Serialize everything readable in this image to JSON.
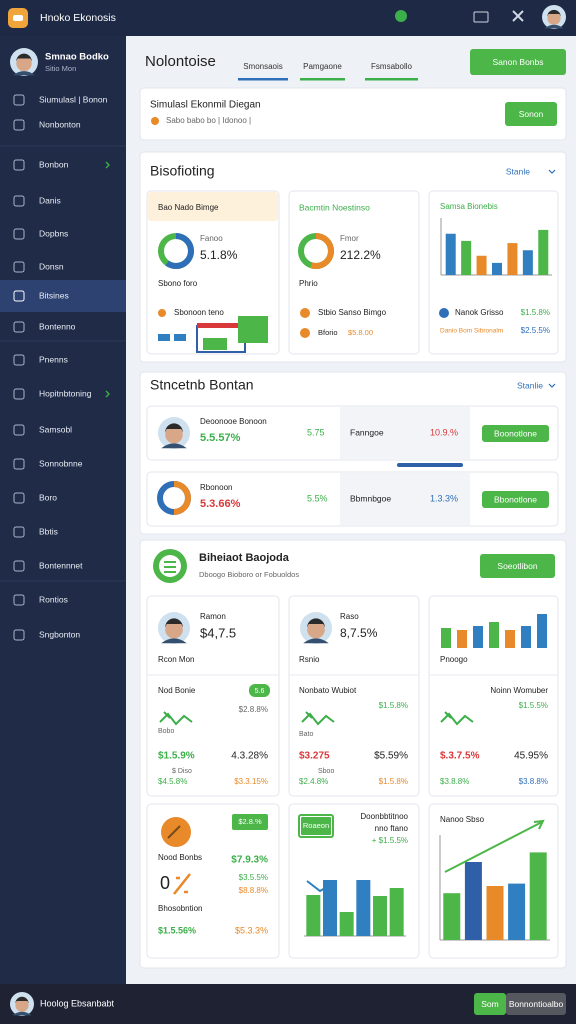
{
  "header": {
    "title": "Hnoko Ekonosis"
  },
  "sidebar": {
    "user_name": "Smnao Bodko",
    "user_role": "Sitio Mon",
    "items": [
      "Siumulasl | Bonon",
      "Nonbonton",
      "Bonbon",
      "Danis",
      "Dopbns",
      "Donsn",
      "Bitsines",
      "Bontenno",
      "Pnenns",
      "Hopitnbtoning",
      "Samsobl",
      "Sonnobnne",
      "Boro",
      "Bbtis",
      "Bontennnet",
      "Rontios",
      "Sngbonton"
    ]
  },
  "page": {
    "title": "Nolontoise",
    "tabs": [
      "Smonsaois",
      "Pamgaone",
      "Fsmsabollo"
    ],
    "action": "Sanon Bonbs"
  },
  "sim": {
    "title": "Simulasl Ekonmil Diegan",
    "meta": "Sabo babo bo | Idonoo |",
    "button": "Sonon"
  },
  "forecast": {
    "title": "Bisofioting",
    "filter": "Stanle",
    "cards": [
      {
        "title": "Bao Nado Bimge",
        "label": "Fanoo",
        "value": "5.1.8%",
        "note": "Sbono foro",
        "legend": "Sbonoon teno"
      },
      {
        "title": "Bacmtin Noestinso",
        "label": "Fmor",
        "value": "212.2%",
        "note": "Phrio",
        "legend": "Stbio Sanso Bimgo",
        "legend2": "Bforio",
        "legend2_value": "$5.8.00"
      },
      {
        "title": "Samsa Bionebis",
        "chart": {
          "type": "bar",
          "ylim": [
            0,
            100
          ],
          "values": [
            75,
            62,
            35,
            22,
            58,
            45,
            82
          ],
          "colors": [
            "#2f7fc1",
            "#4cb648",
            "#e8892a",
            "#2f7fc1",
            "#e8892a",
            "#2f7fc1",
            "#4cb648"
          ]
        },
        "legend": "Nanok Grisso",
        "legend_value": "$1.5.8%",
        "legend2": "Danio Bom Sibronalm",
        "legend2_value": "$2.5.5%"
      }
    ]
  },
  "team": {
    "title": "Stncetnb Bontan",
    "filter": "Stanlie",
    "rows": [
      {
        "name": "Deoonooe Bonoon",
        "value": "5.5.57%",
        "change": "5.75",
        "label": "Fanngoe",
        "delta": "10.9.%",
        "button": "Boonotlone"
      },
      {
        "name": "Rbonoon",
        "value": "5.3.66%",
        "change": "5.5%",
        "label": "Bbmnbgoe",
        "delta": "1.3.3%",
        "button": "Bbonotlone"
      }
    ]
  },
  "projects": {
    "title": "Biheiaot Baojoda",
    "subtitle": "Dboogo Bioboro or Fobuoldos",
    "button": "Soeotlibon",
    "cards": [
      {
        "name": "Ramon",
        "value": "$4,7.5",
        "role": "Rcon Mon",
        "section": "Nod Bonie",
        "badge": "5.6",
        "stat": "$2.8.8%",
        "sub": "Bobo",
        "a": "$1.5.9%",
        "b": "4.3.28%",
        "sub2": "$ Diso",
        "c": "$4.5.8%",
        "d": "$3.3.15%"
      },
      {
        "name": "Raso",
        "value": "8,7.5%",
        "role": "Rsnio",
        "section": "Nonbato Wubiot",
        "stat": "$1.5.8%",
        "sub": "Bato",
        "a": "$3.275",
        "b": "$5.59%",
        "sub2": "Sboo",
        "c": "$2.4.8%",
        "d": "$1.5.8%"
      },
      {
        "role": "Pnoogo",
        "section": "Noinn Womuber",
        "stat": "$1.5.5%",
        "a": "$.3.7.5%",
        "b": "45.95%",
        "c": "$3.8.8%",
        "d": "$3.8.8%",
        "chart": {
          "type": "bar",
          "ylim": [
            0,
            40
          ],
          "values": [
            20,
            18,
            22,
            26,
            18,
            22,
            34
          ],
          "colors": [
            "#4cb648",
            "#e8892a",
            "#2f7fc1",
            "#4cb648",
            "#e8892a",
            "#2f7fc1",
            "#2f7fc1"
          ]
        }
      },
      {
        "badge": "$2.8.%",
        "section": "Nood Bonbs",
        "stat": "$7.9.3%",
        "e": "$3.5.5%",
        "f": "$8.8.8%",
        "sub": "Bhosobntion",
        "c": "$1.5.56%",
        "d": "$5.3.3%"
      },
      {
        "badge": "Roaeon",
        "line1": "Doonbbtitnoo",
        "line2": "nno ftano",
        "stat": "+ $1.5.5%",
        "chart": {
          "type": "bar",
          "ylim": [
            0,
            70
          ],
          "values": [
            41,
            56,
            24,
            56,
            40,
            48
          ],
          "colors": [
            "#4cb648",
            "#2f7fc1",
            "#4cb648",
            "#2f7fc1",
            "#4cb648",
            "#4cb648"
          ]
        }
      },
      {
        "title": "Nanoo Sbso",
        "chart": {
          "type": "bar",
          "ylim": [
            0,
            100
          ],
          "values": [
            39,
            65,
            45,
            47,
            73
          ],
          "colors": [
            "#4cb648",
            "#2f5fa8",
            "#e8892a",
            "#2f7fc1",
            "#4cb648"
          ]
        }
      }
    ]
  },
  "footer": {
    "user": "Hoolog Ebsanbabt",
    "primary": "Som",
    "secondary": "Bonnontioalbo"
  }
}
